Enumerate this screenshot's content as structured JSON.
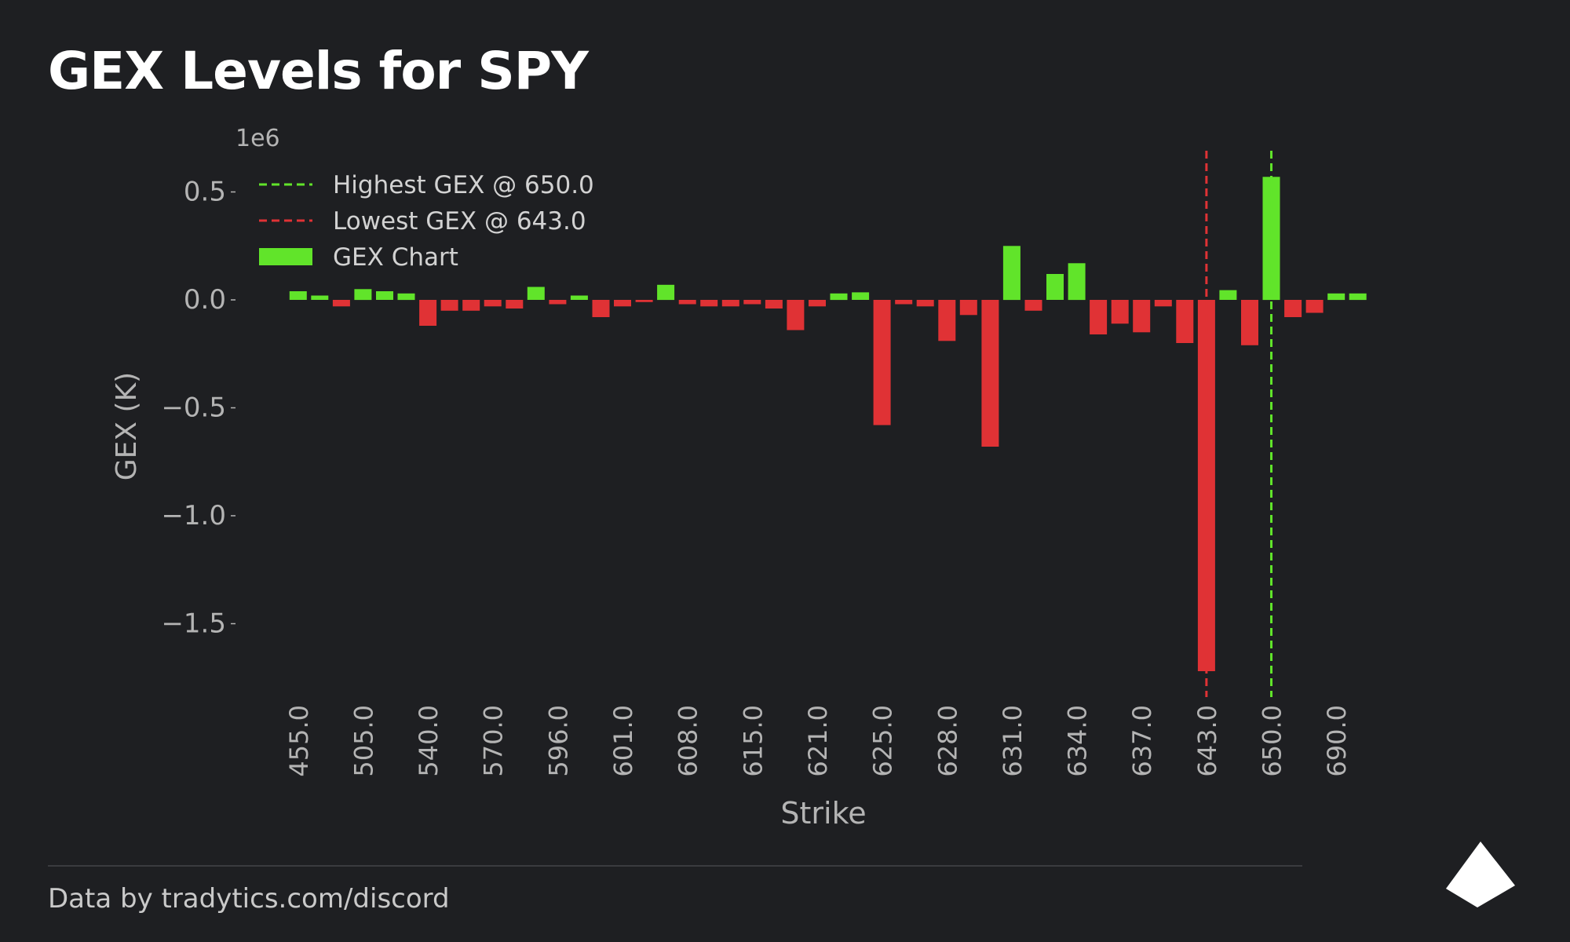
{
  "page": {
    "title": "GEX Levels for SPY",
    "footer": "Data by tradytics.com/discord"
  },
  "colors": {
    "background": "#1e1f22",
    "positive": "#61e42a",
    "negative": "#e03235",
    "axis_text": "#b4b4b4"
  },
  "chart_data": {
    "type": "bar",
    "title": "GEX Levels for SPY",
    "xlabel": "Strike",
    "ylabel": "GEX (K)",
    "y_offset_label": "1e6",
    "ylim": [
      -1.78,
      0.7
    ],
    "yticks": [
      0.5,
      0.0,
      -0.5,
      -1.0,
      -1.5
    ],
    "ytick_labels": [
      "0.5",
      "0.0",
      "−0.5",
      "−1.0",
      "−1.5"
    ],
    "xtick_labels": [
      "455.0",
      "505.0",
      "540.0",
      "570.0",
      "596.0",
      "601.0",
      "608.0",
      "615.0",
      "621.0",
      "625.0",
      "628.0",
      "631.0",
      "634.0",
      "637.0",
      "643.0",
      "650.0",
      "690.0"
    ],
    "xtick_bar_indices": [
      0,
      3,
      6,
      9,
      12,
      15,
      18,
      21,
      24,
      27,
      30,
      33,
      36,
      39,
      42,
      45,
      48
    ],
    "bar_count": 50,
    "values": [
      0.04,
      0.02,
      -0.03,
      0.05,
      0.04,
      0.03,
      -0.12,
      -0.05,
      -0.05,
      -0.03,
      -0.04,
      0.06,
      -0.02,
      0.02,
      -0.08,
      -0.03,
      -0.01,
      0.07,
      -0.02,
      -0.03,
      -0.03,
      -0.02,
      -0.04,
      -0.14,
      -0.03,
      0.03,
      0.035,
      -0.58,
      -0.02,
      -0.03,
      -0.19,
      -0.07,
      -0.68,
      0.25,
      -0.05,
      0.12,
      0.17,
      -0.16,
      -0.11,
      -0.15,
      -0.03,
      -0.2,
      -1.72,
      0.045,
      -0.21,
      0.57,
      -0.08,
      -0.06,
      0.03,
      0.03
    ],
    "highlight_lines": [
      {
        "label": "Highest GEX @ 650.0",
        "bar_index": 45,
        "color": "#61e42a"
      },
      {
        "label": "Lowest GEX @ 643.0",
        "bar_index": 42,
        "color": "#e03235"
      }
    ],
    "legend": {
      "placement": "upper-left",
      "entries": [
        {
          "label": "Highest GEX @ 650.0",
          "kind": "dashed-line",
          "color": "#61e42a"
        },
        {
          "label": "Lowest GEX @ 643.0",
          "kind": "dashed-line",
          "color": "#e03235"
        },
        {
          "label": "GEX Chart",
          "kind": "patch",
          "color": "#61e42a"
        }
      ]
    },
    "grid": false
  }
}
